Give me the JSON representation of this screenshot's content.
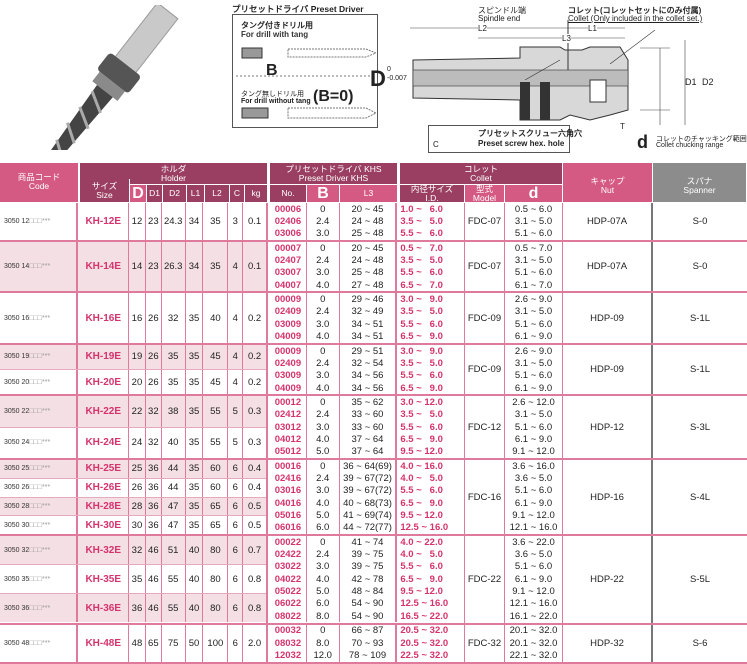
{
  "diagram": {
    "preset_driver_title": "プリセットドライバ Preset Driver",
    "tang_jp": "タング付きドリル用",
    "tang_en": "For drill with tang",
    "b_label": "B",
    "notang_jp": "タング無しドリル用",
    "notang_en": "For drill without tang",
    "b0_label": "(B=0)",
    "spindle_jp": "スピンドル端",
    "spindle_en": "Spindle end",
    "collet_jp": "コレット(コレットセットにのみ付属)",
    "collet_en": "Collet (Only included in the collet set.)",
    "L1": "L1",
    "L2": "L2",
    "L3": "L3",
    "D": "D",
    "D_tol_upper": "0",
    "D_tol_lower": "-0.007",
    "D1": "D1",
    "D2": "D2",
    "T": "T",
    "C": "C",
    "screw_jp": "プリセットスクリュー六角穴",
    "screw_en": "Preset screw hex. hole",
    "d_label": "d",
    "d_jp": "コレットのチャッキング範囲",
    "d_en": "Collet chucking range"
  },
  "header": {
    "code_jp": "商品コード",
    "code_en": "Code",
    "holder_jp": "ホルダ",
    "holder_en": "Holder",
    "size_jp": "サイズ",
    "size_en": "Size",
    "cols": [
      "D",
      "D1",
      "D2",
      "L1",
      "L2",
      "C",
      "kg"
    ],
    "driver_jp": "プリセットドライバ KHS",
    "driver_en": "Preset Driver KHS",
    "no": "No.",
    "b": "B",
    "l3": "L3",
    "collet_jp": "コレット",
    "collet_en": "Collet",
    "id_jp": "内径サイズ",
    "id_en": "I.D.",
    "model_jp": "型式",
    "model_en": "Model",
    "d": "d",
    "nut_jp": "キャップ",
    "nut_en": "Nut",
    "spanner_jp": "スパナ",
    "spanner_en": "Spanner"
  },
  "colors": {
    "accent_pink": "#d45a84",
    "header_dark": "#9a3f61",
    "spanner_grey": "#8c8c8c",
    "code_text": "#d6336c"
  },
  "groups": [
    {
      "holders": [
        {
          "code": "3050 12",
          "suffix": "□□□***",
          "size": "KH-12E",
          "vals": [
            "12",
            "23",
            "24.3",
            "34",
            "35",
            "3",
            "0.1"
          ]
        }
      ],
      "drivers": [
        [
          "00006",
          "0",
          "20 ~ 45",
          "1.0 ~   6.0",
          "0.5 ~ 6.0"
        ],
        [
          "02406",
          "2.4",
          "24 ~ 48",
          "3.5 ~   5.0",
          "3.1 ~ 5.0"
        ],
        [
          "03006",
          "3.0",
          "25 ~ 48",
          "5.5 ~   6.0",
          "5.1 ~ 6.0"
        ]
      ],
      "model": "FDC-07",
      "nut": "HDP-07A",
      "spanner": "S-0"
    },
    {
      "holders": [
        {
          "code": "3050 14",
          "suffix": "□□□***",
          "size": "KH-14E",
          "vals": [
            "14",
            "23",
            "26.3",
            "34",
            "35",
            "4",
            "0.1"
          ]
        }
      ],
      "drivers": [
        [
          "00007",
          "0",
          "20 ~ 45",
          "0.5 ~   7.0",
          "0.5 ~ 7.0"
        ],
        [
          "02407",
          "2.4",
          "24 ~ 48",
          "3.5 ~   5.0",
          "3.1 ~ 5.0"
        ],
        [
          "03007",
          "3.0",
          "25 ~ 48",
          "5.5 ~   6.0",
          "5.1 ~ 6.0"
        ],
        [
          "04007",
          "4.0",
          "27 ~ 48",
          "6.5 ~   7.0",
          "6.1 ~ 7.0"
        ]
      ],
      "model": "FDC-07",
      "nut": "HDP-07A",
      "spanner": "S-0"
    },
    {
      "holders": [
        {
          "code": "3050 16",
          "suffix": "□□□***",
          "size": "KH-16E",
          "vals": [
            "16",
            "26",
            "32",
            "35",
            "40",
            "4",
            "0.2"
          ]
        }
      ],
      "drivers": [
        [
          "00009",
          "0",
          "29 ~ 46",
          "3.0 ~   9.0",
          "2.6 ~ 9.0"
        ],
        [
          "02409",
          "2.4",
          "32 ~ 49",
          "3.5 ~   5.0",
          "3.1 ~ 5.0"
        ],
        [
          "03009",
          "3.0",
          "34 ~ 51",
          "5.5 ~   6.0",
          "5.1 ~ 6.0"
        ],
        [
          "04009",
          "4.0",
          "34 ~ 51",
          "6.5 ~   9.0",
          "6.1 ~ 9.0"
        ]
      ],
      "model": "FDC-09",
      "nut": "HDP-09",
      "spanner": "S-1L"
    },
    {
      "holders": [
        {
          "code": "3050 19",
          "suffix": "□□□***",
          "size": "KH-19E",
          "vals": [
            "19",
            "26",
            "35",
            "35",
            "45",
            "4",
            "0.2"
          ]
        },
        {
          "code": "3050 20",
          "suffix": "□□□***",
          "size": "KH-20E",
          "vals": [
            "20",
            "26",
            "35",
            "35",
            "45",
            "4",
            "0.2"
          ]
        }
      ],
      "drivers": [
        [
          "00009",
          "0",
          "29 ~ 51",
          "3.0 ~   9.0",
          "2.6 ~ 9.0"
        ],
        [
          "02409",
          "2.4",
          "32 ~ 54",
          "3.5 ~   5.0",
          "3.1 ~ 5.0"
        ],
        [
          "03009",
          "3.0",
          "34 ~ 56",
          "5.5 ~   6.0",
          "5.1 ~ 6.0"
        ],
        [
          "04009",
          "4.0",
          "34 ~ 56",
          "6.5 ~   9.0",
          "6.1 ~ 9.0"
        ]
      ],
      "model": "FDC-09",
      "nut": "HDP-09",
      "spanner": "S-1L"
    },
    {
      "holders": [
        {
          "code": "3050 22",
          "suffix": "□□□***",
          "size": "KH-22E",
          "vals": [
            "22",
            "32",
            "38",
            "35",
            "55",
            "5",
            "0.3"
          ]
        },
        {
          "code": "3050 24",
          "suffix": "□□□***",
          "size": "KH-24E",
          "vals": [
            "24",
            "32",
            "40",
            "35",
            "55",
            "5",
            "0.3"
          ]
        }
      ],
      "drivers": [
        [
          "00012",
          "0",
          "35 ~ 62",
          "3.0 ~ 12.0",
          "2.6 ~ 12.0"
        ],
        [
          "02412",
          "2.4",
          "33 ~ 60",
          "3.5 ~   5.0",
          "3.1 ~ 5.0"
        ],
        [
          "03012",
          "3.0",
          "33 ~ 60",
          "5.5 ~   6.0",
          "5.1 ~ 6.0"
        ],
        [
          "04012",
          "4.0",
          "37 ~ 64",
          "6.5 ~   9.0",
          "6.1 ~ 9.0"
        ],
        [
          "05012",
          "5.0",
          "37 ~ 64",
          "9.5 ~ 12.0",
          "9.1 ~ 12.0"
        ]
      ],
      "model": "FDC-12",
      "nut": "HDP-12",
      "spanner": "S-3L"
    },
    {
      "holders": [
        {
          "code": "3050 25",
          "suffix": "□□□***",
          "size": "KH-25E",
          "vals": [
            "25",
            "36",
            "44",
            "35",
            "60",
            "6",
            "0.4"
          ]
        },
        {
          "code": "3050 26",
          "suffix": "□□□***",
          "size": "KH-26E",
          "vals": [
            "26",
            "36",
            "44",
            "35",
            "60",
            "6",
            "0.4"
          ]
        },
        {
          "code": "3050 28",
          "suffix": "□□□***",
          "size": "KH-28E",
          "vals": [
            "28",
            "36",
            "47",
            "35",
            "65",
            "6",
            "0.5"
          ]
        },
        {
          "code": "3050 30",
          "suffix": "□□□***",
          "size": "KH-30E",
          "vals": [
            "30",
            "36",
            "47",
            "35",
            "65",
            "6",
            "0.5"
          ]
        }
      ],
      "drivers": [
        [
          "00016",
          "0",
          "36 ~ 64(69)",
          "4.0 ~ 16.0",
          "3.6 ~ 16.0"
        ],
        [
          "02416",
          "2.4",
          "39 ~ 67(72)",
          "4.0 ~   5.0",
          "3.6 ~ 5.0"
        ],
        [
          "03016",
          "3.0",
          "39 ~ 67(72)",
          "5.5 ~   6.0",
          "5.1 ~ 6.0"
        ],
        [
          "04016",
          "4.0",
          "40 ~ 68(73)",
          "6.5 ~   9.0",
          "6.1 ~ 9.0"
        ],
        [
          "05016",
          "5.0",
          "41 ~ 69(74)",
          "9.5 ~ 12.0",
          "9.1 ~ 12.0"
        ],
        [
          "06016",
          "6.0",
          "44 ~ 72(77)",
          "12.5 ~ 16.0",
          "12.1 ~ 16.0"
        ]
      ],
      "model": "FDC-16",
      "nut": "HDP-16",
      "spanner": "S-4L"
    },
    {
      "holders": [
        {
          "code": "3050 32",
          "suffix": "□□□***",
          "size": "KH-32E",
          "vals": [
            "32",
            "46",
            "51",
            "40",
            "80",
            "6",
            "0.7"
          ]
        },
        {
          "code": "3050 35",
          "suffix": "□□□***",
          "size": "KH-35E",
          "vals": [
            "35",
            "46",
            "55",
            "40",
            "80",
            "6",
            "0.8"
          ]
        },
        {
          "code": "3050 36",
          "suffix": "□□□***",
          "size": "KH-36E",
          "vals": [
            "36",
            "46",
            "55",
            "40",
            "80",
            "6",
            "0.8"
          ]
        }
      ],
      "drivers": [
        [
          "00022",
          "0",
          "41 ~ 74",
          "4.0 ~ 22.0",
          "3.6 ~ 22.0"
        ],
        [
          "02422",
          "2.4",
          "39 ~ 75",
          "4.0 ~   5.0",
          "3.6 ~ 5.0"
        ],
        [
          "03022",
          "3.0",
          "39 ~ 75",
          "5.5 ~   6.0",
          "5.1 ~ 6.0"
        ],
        [
          "04022",
          "4.0",
          "42 ~ 78",
          "6.5 ~   9.0",
          "6.1 ~ 9.0"
        ],
        [
          "05022",
          "5.0",
          "48 ~ 84",
          "9.5 ~ 12.0",
          "9.1 ~ 12.0"
        ],
        [
          "06022",
          "6.0",
          "54 ~ 90",
          "12.5 ~ 16.0",
          "12.1 ~ 16.0"
        ],
        [
          "08022",
          "8.0",
          "54 ~ 90",
          "16.5 ~ 22.0",
          "16.1 ~ 22.0"
        ]
      ],
      "model": "FDC-22",
      "nut": "HDP-22",
      "spanner": "S-5L"
    },
    {
      "holders": [
        {
          "code": "3050 48",
          "suffix": "□□□***",
          "size": "KH-48E",
          "vals": [
            "48",
            "65",
            "75",
            "50",
            "100",
            "6",
            "2.0"
          ]
        }
      ],
      "drivers": [
        [
          "00032",
          "0",
          "66 ~ 87",
          "20.5 ~ 32.0",
          "20.1 ~ 32.0"
        ],
        [
          "08032",
          "8.0",
          "70 ~ 93",
          "20.5 ~ 32.0",
          "20.1 ~ 32.0"
        ],
        [
          "12032",
          "12.0",
          "78 ~ 109",
          "22.5 ~ 32.0",
          "22.1 ~ 32.0"
        ]
      ],
      "model": "FDC-32",
      "nut": "HDP-32",
      "spanner": "S-6"
    }
  ]
}
